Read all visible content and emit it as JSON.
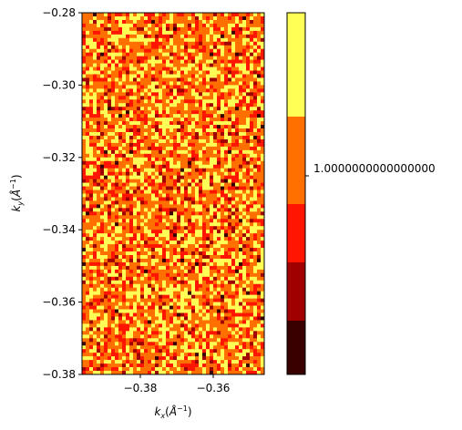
{
  "chart_data": {
    "type": "heatmap",
    "title": "",
    "xlabel": {
      "base": "k",
      "sub": "x",
      "unit": "Å",
      "exp": "−1"
    },
    "ylabel": {
      "base": "k",
      "sub": "y",
      "unit": "Å",
      "exp": "−1"
    },
    "xlim": [
      -0.396,
      -0.346
    ],
    "ylim": [
      -0.38,
      -0.28
    ],
    "x_ticks": [
      -0.38,
      -0.36
    ],
    "x_tick_labels": [
      "−0.38",
      "−0.36"
    ],
    "y_ticks": [
      -0.28,
      -0.3,
      -0.32,
      -0.34,
      -0.36,
      -0.38
    ],
    "y_tick_labels": [
      "−0.28",
      "−0.30",
      "−0.32",
      "−0.34",
      "−0.36",
      "−0.38"
    ],
    "grid": false,
    "colormap": "hot",
    "grid_shape": {
      "cols": 50,
      "rows": 100
    },
    "value_distribution": "random, dominated by levels 3–5",
    "colorbar": {
      "tick_value": 1.0,
      "tick_label": "1.0000000000000000",
      "levels": [
        {
          "level": 5,
          "color": "#ffff55"
        },
        {
          "level": 4,
          "color": "#ff7000"
        },
        {
          "level": 3,
          "color": "#ff1500"
        },
        {
          "level": 2,
          "color": "#a00000"
        },
        {
          "level": 1,
          "color": "#3a0000"
        }
      ]
    }
  }
}
